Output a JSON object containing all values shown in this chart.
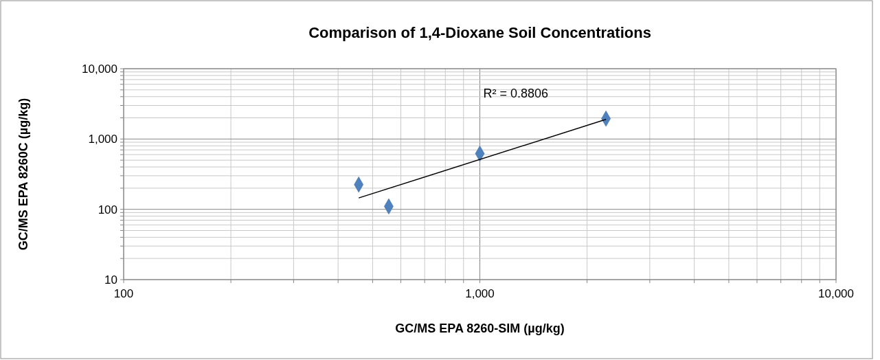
{
  "chart_data": {
    "type": "scatter",
    "title": "Comparison of 1,4-Dioxane Soil Concentrations",
    "xlabel": "GC/MS EPA 8260-SIM (µg/kg)",
    "ylabel": "GC/MS EPA 8260C (µg/kg)",
    "log": "xy",
    "grid": true,
    "marker": "diamond",
    "xlim": [
      100,
      10000
    ],
    "ylim": [
      10,
      10000
    ],
    "xticks": [
      {
        "value": 100,
        "label": "100"
      },
      {
        "value": 200,
        "label": null
      },
      {
        "value": 300,
        "label": null
      },
      {
        "value": 400,
        "label": null
      },
      {
        "value": 500,
        "label": null
      },
      {
        "value": 600,
        "label": null
      },
      {
        "value": 700,
        "label": null
      },
      {
        "value": 800,
        "label": null
      },
      {
        "value": 900,
        "label": null
      },
      {
        "value": 1000,
        "label": "1,000"
      },
      {
        "value": 2000,
        "label": null
      },
      {
        "value": 3000,
        "label": null
      },
      {
        "value": 4000,
        "label": null
      },
      {
        "value": 5000,
        "label": null
      },
      {
        "value": 6000,
        "label": null
      },
      {
        "value": 7000,
        "label": null
      },
      {
        "value": 8000,
        "label": null
      },
      {
        "value": 9000,
        "label": null
      },
      {
        "value": 10000,
        "label": "10,000"
      }
    ],
    "yticks": [
      {
        "value": 10,
        "label": "10"
      },
      {
        "value": 20,
        "label": null
      },
      {
        "value": 30,
        "label": null
      },
      {
        "value": 40,
        "label": null
      },
      {
        "value": 50,
        "label": null
      },
      {
        "value": 60,
        "label": null
      },
      {
        "value": 70,
        "label": null
      },
      {
        "value": 80,
        "label": null
      },
      {
        "value": 90,
        "label": null
      },
      {
        "value": 100,
        "label": "100"
      },
      {
        "value": 200,
        "label": null
      },
      {
        "value": 300,
        "label": null
      },
      {
        "value": 400,
        "label": null
      },
      {
        "value": 500,
        "label": null
      },
      {
        "value": 600,
        "label": null
      },
      {
        "value": 700,
        "label": null
      },
      {
        "value": 800,
        "label": null
      },
      {
        "value": 900,
        "label": null
      },
      {
        "value": 1000,
        "label": "1,000"
      },
      {
        "value": 2000,
        "label": null
      },
      {
        "value": 3000,
        "label": null
      },
      {
        "value": 4000,
        "label": null
      },
      {
        "value": 5000,
        "label": null
      },
      {
        "value": 6000,
        "label": null
      },
      {
        "value": 7000,
        "label": null
      },
      {
        "value": 8000,
        "label": null
      },
      {
        "value": 9000,
        "label": null
      },
      {
        "value": 10000,
        "label": "10,000"
      }
    ],
    "series": [
      {
        "color": "#4f81bd",
        "x": [
          457,
          555,
          1000,
          2260
        ],
        "values": [
          225,
          110,
          620,
          1950
        ]
      },
      {
        "type": "line",
        "color": "#000000",
        "marker": "none",
        "x": [
          457,
          2260
        ],
        "values": [
          145,
          1900
        ]
      }
    ],
    "annotations": [
      "R² = 0.8806"
    ]
  }
}
